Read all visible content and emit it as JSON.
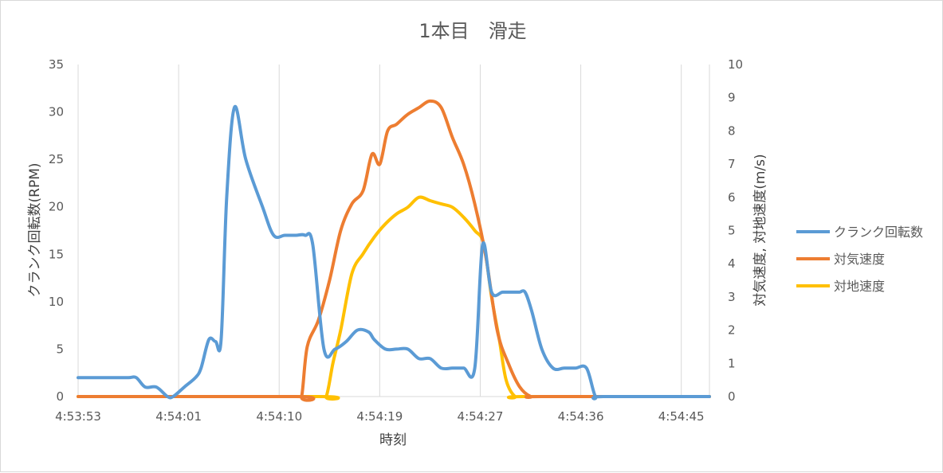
{
  "chart_data": {
    "type": "line",
    "title": "1本目　滑走",
    "xlabel": "時刻",
    "ylabel_left": "クランク回転数(RPM)",
    "ylabel_right": "対気速度, 対地速度(m/s)",
    "x_ticks": [
      "4:53:53",
      "4:54:01",
      "4:54:10",
      "4:54:19",
      "4:54:27",
      "4:54:36",
      "4:54:45"
    ],
    "x_range_seconds": [
      0,
      56.5
    ],
    "ylim_left": [
      0,
      35
    ],
    "yticks_left": [
      "0",
      "5",
      "10",
      "15",
      "20",
      "25",
      "30",
      "35"
    ],
    "ylim_right": [
      0,
      10
    ],
    "yticks_right": [
      "0",
      "1",
      "2",
      "3",
      "4",
      "5",
      "6",
      "7",
      "8",
      "9",
      "10"
    ],
    "grid": "vertical",
    "legend_position": "right",
    "series": [
      {
        "name": "クランク回転数",
        "axis": "left",
        "color": "#5b9bd5",
        "points": [
          [
            0,
            2
          ],
          [
            1,
            2
          ],
          [
            3,
            2
          ],
          [
            4.5,
            2
          ],
          [
            5.2,
            2
          ],
          [
            6,
            1
          ],
          [
            7,
            1
          ],
          [
            8,
            0
          ],
          [
            8.5,
            0
          ],
          [
            9.5,
            1
          ],
          [
            10.5,
            2
          ],
          [
            11,
            3
          ],
          [
            11.7,
            6
          ],
          [
            12.3,
            5.8
          ],
          [
            12.8,
            6
          ],
          [
            13.3,
            21
          ],
          [
            14,
            30.5
          ],
          [
            15,
            25
          ],
          [
            16.5,
            20
          ],
          [
            17.5,
            17
          ],
          [
            18.5,
            17
          ],
          [
            19.5,
            17
          ],
          [
            20.3,
            17
          ],
          [
            21,
            16
          ],
          [
            22,
            5
          ],
          [
            23,
            5
          ],
          [
            24,
            5.8
          ],
          [
            25,
            7
          ],
          [
            26,
            6.8
          ],
          [
            26.5,
            6
          ],
          [
            27.5,
            5
          ],
          [
            28.5,
            5
          ],
          [
            29.5,
            5
          ],
          [
            30.5,
            4
          ],
          [
            31.5,
            4
          ],
          [
            32.5,
            3
          ],
          [
            33.5,
            3
          ],
          [
            34.5,
            3
          ],
          [
            35.5,
            3
          ],
          [
            36.2,
            16
          ],
          [
            37,
            11
          ],
          [
            38,
            11
          ],
          [
            39,
            11
          ],
          [
            39.5,
            11
          ],
          [
            40,
            11
          ],
          [
            40.6,
            9
          ],
          [
            41.5,
            5
          ],
          [
            42.5,
            3
          ],
          [
            43.5,
            3
          ],
          [
            44.5,
            3
          ],
          [
            45.5,
            3
          ],
          [
            46.3,
            0
          ],
          [
            47,
            0
          ],
          [
            56.5,
            0
          ]
        ]
      },
      {
        "name": "対気速度",
        "axis": "right",
        "color": "#ed7d31",
        "points": [
          [
            0,
            0
          ],
          [
            19.5,
            0
          ],
          [
            20,
            0
          ],
          [
            20.5,
            1.5
          ],
          [
            21.5,
            2.3
          ],
          [
            22.5,
            3.5
          ],
          [
            23.5,
            5
          ],
          [
            24.5,
            5.8
          ],
          [
            25.5,
            6.2
          ],
          [
            26.3,
            7.3
          ],
          [
            27,
            7
          ],
          [
            27.7,
            8
          ],
          [
            28.5,
            8.2
          ],
          [
            29.5,
            8.5
          ],
          [
            30.5,
            8.7
          ],
          [
            31.5,
            8.9
          ],
          [
            32.5,
            8.7
          ],
          [
            33.5,
            7.8
          ],
          [
            34.5,
            7
          ],
          [
            35.5,
            5.8
          ],
          [
            36.5,
            4.2
          ],
          [
            37.5,
            2
          ],
          [
            38.5,
            1
          ],
          [
            39.5,
            0.3
          ],
          [
            40.5,
            0
          ],
          [
            41.5,
            0
          ],
          [
            56.5,
            0
          ]
        ]
      },
      {
        "name": "対地速度",
        "axis": "right",
        "color": "#ffc000",
        "points": [
          [
            0,
            0
          ],
          [
            21.5,
            0
          ],
          [
            22.2,
            0
          ],
          [
            22.8,
            1
          ],
          [
            23.5,
            2
          ],
          [
            24.5,
            3.7
          ],
          [
            25.5,
            4.3
          ],
          [
            26.5,
            4.8
          ],
          [
            27.5,
            5.2
          ],
          [
            28.5,
            5.5
          ],
          [
            29.5,
            5.7
          ],
          [
            30.5,
            6
          ],
          [
            31.5,
            5.9
          ],
          [
            32.5,
            5.8
          ],
          [
            33.5,
            5.7
          ],
          [
            34.5,
            5.4
          ],
          [
            35.5,
            5
          ],
          [
            36.3,
            4.6
          ],
          [
            37,
            3
          ],
          [
            37.7,
            1.7
          ],
          [
            38.3,
            0.5
          ],
          [
            39.1,
            0
          ],
          [
            40,
            0
          ],
          [
            56.5,
            0
          ]
        ]
      }
    ]
  }
}
